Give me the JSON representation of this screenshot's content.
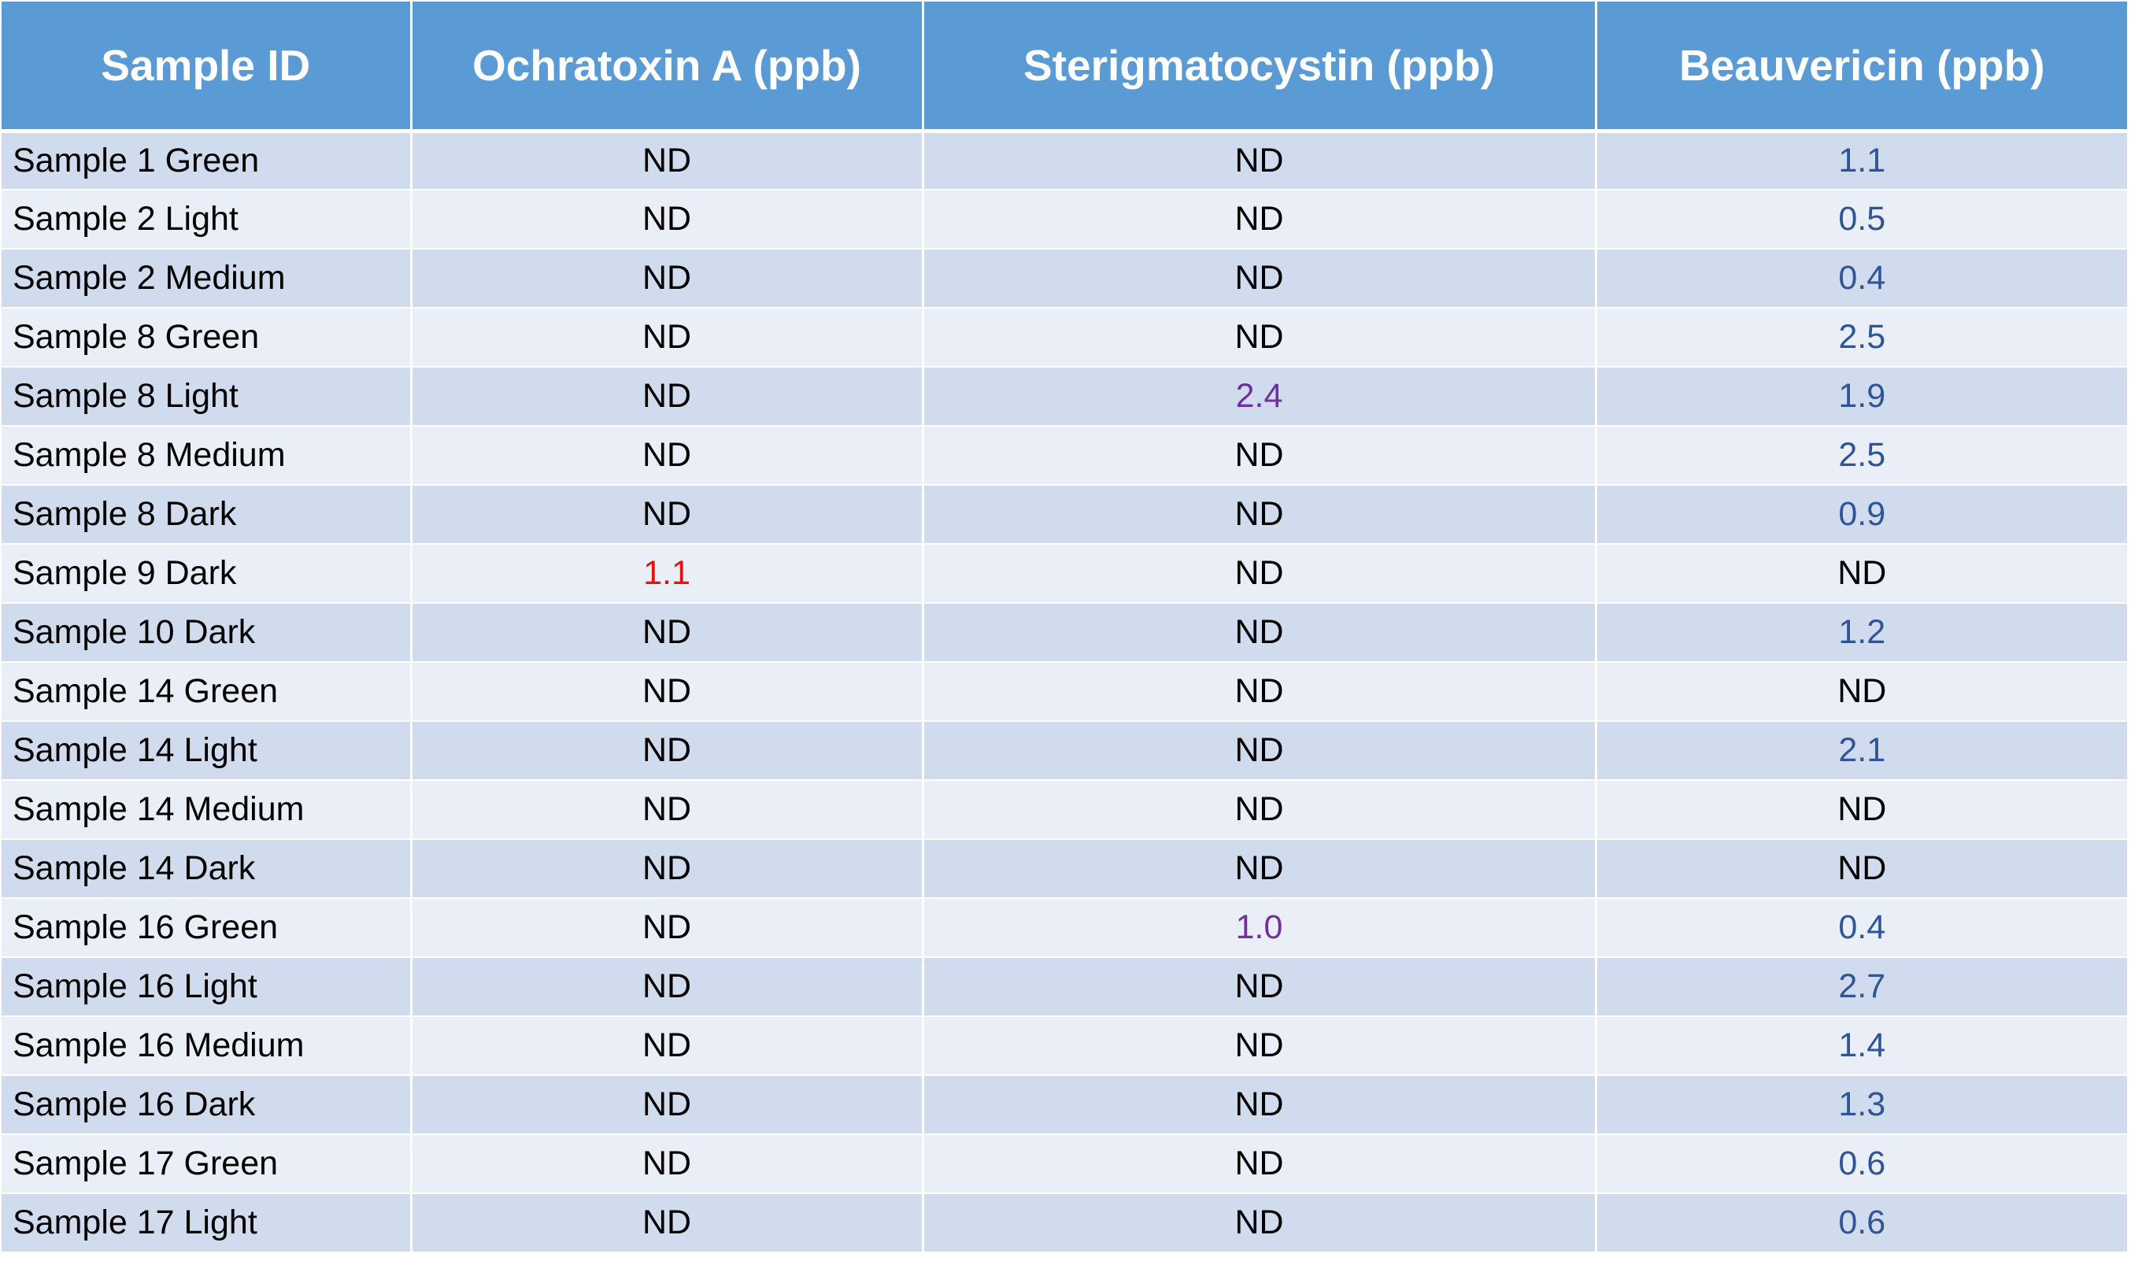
{
  "table": {
    "headers": [
      "Sample ID",
      "Ochratoxin A (ppb)",
      "Sterigmatocystin (ppb)",
      "Beauvericin (ppb)"
    ],
    "rows": [
      {
        "id": "Sample 1 Green",
        "ochratoxin_a": "ND",
        "sterigmatocystin": "ND",
        "beauvericin": "1.1"
      },
      {
        "id": "Sample 2 Light",
        "ochratoxin_a": "ND",
        "sterigmatocystin": "ND",
        "beauvericin": "0.5"
      },
      {
        "id": "Sample 2 Medium",
        "ochratoxin_a": "ND",
        "sterigmatocystin": "ND",
        "beauvericin": "0.4"
      },
      {
        "id": "Sample 8 Green",
        "ochratoxin_a": "ND",
        "sterigmatocystin": "ND",
        "beauvericin": "2.5"
      },
      {
        "id": "Sample 8 Light",
        "ochratoxin_a": "ND",
        "sterigmatocystin": "2.4",
        "beauvericin": "1.9"
      },
      {
        "id": "Sample 8 Medium",
        "ochratoxin_a": "ND",
        "sterigmatocystin": "ND",
        "beauvericin": "2.5"
      },
      {
        "id": "Sample 8 Dark",
        "ochratoxin_a": "ND",
        "sterigmatocystin": "ND",
        "beauvericin": "0.9"
      },
      {
        "id": "Sample 9 Dark",
        "ochratoxin_a": "1.1",
        "sterigmatocystin": "ND",
        "beauvericin": "ND"
      },
      {
        "id": "Sample 10 Dark",
        "ochratoxin_a": "ND",
        "sterigmatocystin": "ND",
        "beauvericin": "1.2"
      },
      {
        "id": "Sample 14 Green",
        "ochratoxin_a": "ND",
        "sterigmatocystin": "ND",
        "beauvericin": "ND"
      },
      {
        "id": "Sample 14 Light",
        "ochratoxin_a": "ND",
        "sterigmatocystin": "ND",
        "beauvericin": "2.1"
      },
      {
        "id": "Sample 14 Medium",
        "ochratoxin_a": "ND",
        "sterigmatocystin": "ND",
        "beauvericin": "ND"
      },
      {
        "id": "Sample 14 Dark",
        "ochratoxin_a": "ND",
        "sterigmatocystin": "ND",
        "beauvericin": "ND"
      },
      {
        "id": "Sample 16 Green",
        "ochratoxin_a": "ND",
        "sterigmatocystin": "1.0",
        "beauvericin": "0.4"
      },
      {
        "id": "Sample 16 Light",
        "ochratoxin_a": "ND",
        "sterigmatocystin": "ND",
        "beauvericin": "2.7"
      },
      {
        "id": "Sample 16 Medium",
        "ochratoxin_a": "ND",
        "sterigmatocystin": "ND",
        "beauvericin": "1.4"
      },
      {
        "id": "Sample 16 Dark",
        "ochratoxin_a": "ND",
        "sterigmatocystin": "ND",
        "beauvericin": "1.3"
      },
      {
        "id": "Sample 17 Green",
        "ochratoxin_a": "ND",
        "sterigmatocystin": "ND",
        "beauvericin": "0.6"
      },
      {
        "id": "Sample 17 Light",
        "ochratoxin_a": "ND",
        "sterigmatocystin": "ND",
        "beauvericin": "0.6"
      }
    ]
  },
  "colors": {
    "header_bg": "#5b9bd5",
    "row_odd_bg": "#d0dcee",
    "row_even_bg": "#e9eef7",
    "ochratoxin_value": "#e81010",
    "sterigmatocystin_value": "#7030a0",
    "beauvericin_value": "#2f5597",
    "not_detected": "#000000"
  }
}
